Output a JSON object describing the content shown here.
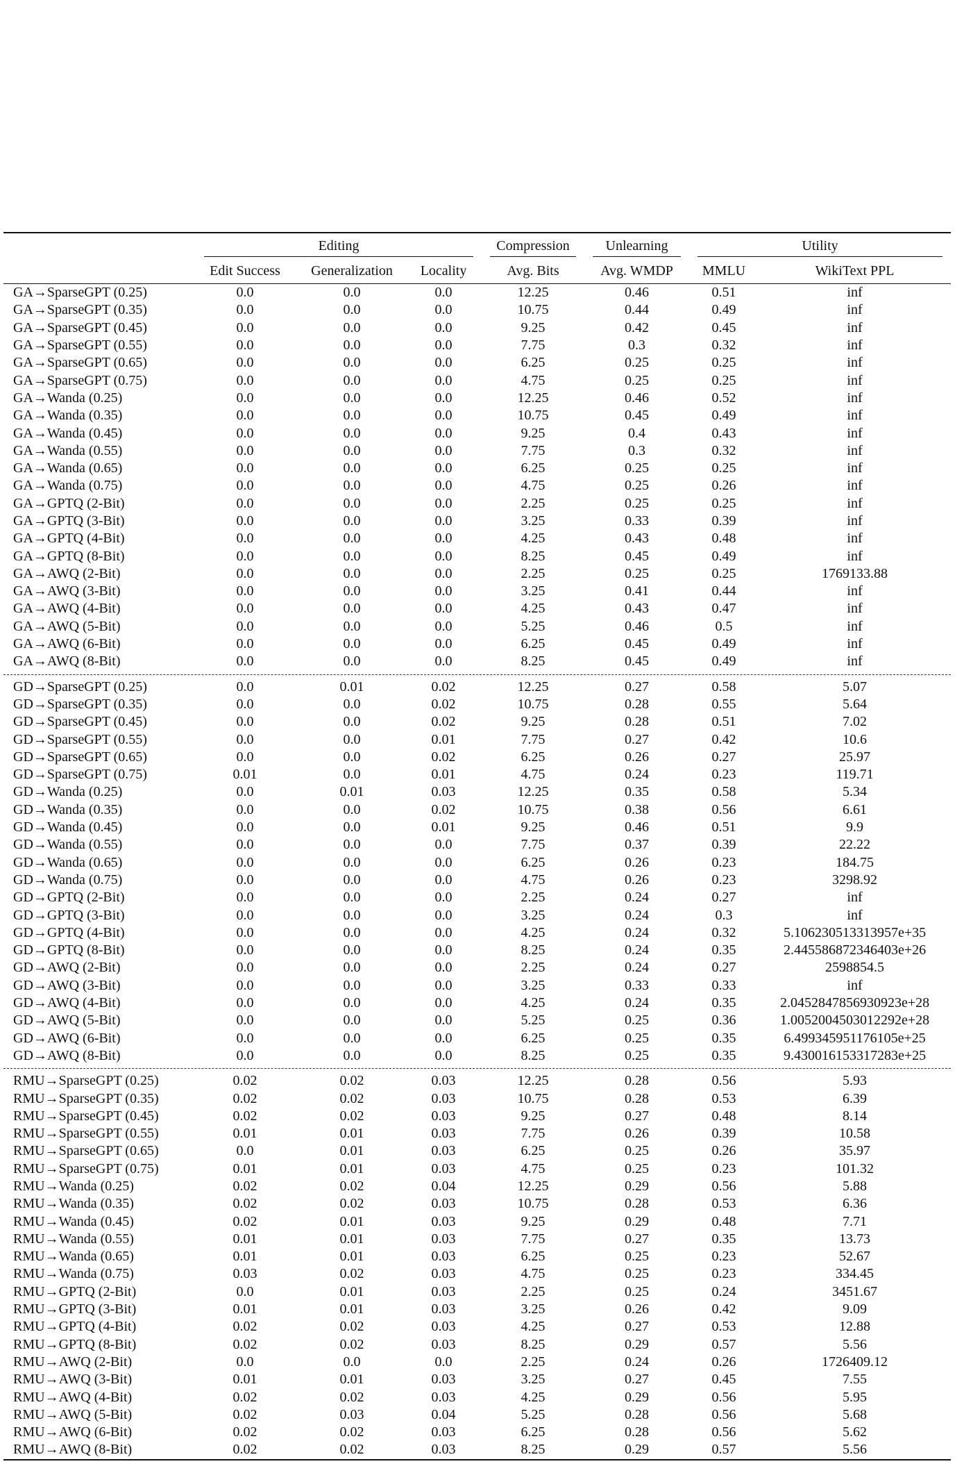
{
  "header": {
    "groups": [
      "Editing",
      "Compression",
      "Unlearning",
      "Utility"
    ],
    "columns": [
      "Edit Success",
      "Generalization",
      "Locality",
      "Avg. Bits",
      "Avg. WMDP",
      "MMLU",
      "WikiText PPL"
    ]
  },
  "sections": [
    {
      "rows": [
        [
          "GA→SparseGPT (0.25)",
          "0.0",
          "0.0",
          "0.0",
          "12.25",
          "0.46",
          "0.51",
          "inf"
        ],
        [
          "GA→SparseGPT (0.35)",
          "0.0",
          "0.0",
          "0.0",
          "10.75",
          "0.44",
          "0.49",
          "inf"
        ],
        [
          "GA→SparseGPT (0.45)",
          "0.0",
          "0.0",
          "0.0",
          "9.25",
          "0.42",
          "0.45",
          "inf"
        ],
        [
          "GA→SparseGPT (0.55)",
          "0.0",
          "0.0",
          "0.0",
          "7.75",
          "0.3",
          "0.32",
          "inf"
        ],
        [
          "GA→SparseGPT (0.65)",
          "0.0",
          "0.0",
          "0.0",
          "6.25",
          "0.25",
          "0.25",
          "inf"
        ],
        [
          "GA→SparseGPT (0.75)",
          "0.0",
          "0.0",
          "0.0",
          "4.75",
          "0.25",
          "0.25",
          "inf"
        ],
        [
          "GA→Wanda (0.25)",
          "0.0",
          "0.0",
          "0.0",
          "12.25",
          "0.46",
          "0.52",
          "inf"
        ],
        [
          "GA→Wanda (0.35)",
          "0.0",
          "0.0",
          "0.0",
          "10.75",
          "0.45",
          "0.49",
          "inf"
        ],
        [
          "GA→Wanda (0.45)",
          "0.0",
          "0.0",
          "0.0",
          "9.25",
          "0.4",
          "0.43",
          "inf"
        ],
        [
          "GA→Wanda (0.55)",
          "0.0",
          "0.0",
          "0.0",
          "7.75",
          "0.3",
          "0.32",
          "inf"
        ],
        [
          "GA→Wanda (0.65)",
          "0.0",
          "0.0",
          "0.0",
          "6.25",
          "0.25",
          "0.25",
          "inf"
        ],
        [
          "GA→Wanda (0.75)",
          "0.0",
          "0.0",
          "0.0",
          "4.75",
          "0.25",
          "0.26",
          "inf"
        ],
        [
          "GA→GPTQ (2-Bit)",
          "0.0",
          "0.0",
          "0.0",
          "2.25",
          "0.25",
          "0.25",
          "inf"
        ],
        [
          "GA→GPTQ (3-Bit)",
          "0.0",
          "0.0",
          "0.0",
          "3.25",
          "0.33",
          "0.39",
          "inf"
        ],
        [
          "GA→GPTQ (4-Bit)",
          "0.0",
          "0.0",
          "0.0",
          "4.25",
          "0.43",
          "0.48",
          "inf"
        ],
        [
          "GA→GPTQ (8-Bit)",
          "0.0",
          "0.0",
          "0.0",
          "8.25",
          "0.45",
          "0.49",
          "inf"
        ],
        [
          "GA→AWQ (2-Bit)",
          "0.0",
          "0.0",
          "0.0",
          "2.25",
          "0.25",
          "0.25",
          "1769133.88"
        ],
        [
          "GA→AWQ (3-Bit)",
          "0.0",
          "0.0",
          "0.0",
          "3.25",
          "0.41",
          "0.44",
          "inf"
        ],
        [
          "GA→AWQ (4-Bit)",
          "0.0",
          "0.0",
          "0.0",
          "4.25",
          "0.43",
          "0.47",
          "inf"
        ],
        [
          "GA→AWQ (5-Bit)",
          "0.0",
          "0.0",
          "0.0",
          "5.25",
          "0.46",
          "0.5",
          "inf"
        ],
        [
          "GA→AWQ (6-Bit)",
          "0.0",
          "0.0",
          "0.0",
          "6.25",
          "0.45",
          "0.49",
          "inf"
        ],
        [
          "GA→AWQ (8-Bit)",
          "0.0",
          "0.0",
          "0.0",
          "8.25",
          "0.45",
          "0.49",
          "inf"
        ]
      ]
    },
    {
      "rows": [
        [
          "GD→SparseGPT (0.25)",
          "0.0",
          "0.01",
          "0.02",
          "12.25",
          "0.27",
          "0.58",
          "5.07"
        ],
        [
          "GD→SparseGPT (0.35)",
          "0.0",
          "0.0",
          "0.02",
          "10.75",
          "0.28",
          "0.55",
          "5.64"
        ],
        [
          "GD→SparseGPT (0.45)",
          "0.0",
          "0.0",
          "0.02",
          "9.25",
          "0.28",
          "0.51",
          "7.02"
        ],
        [
          "GD→SparseGPT (0.55)",
          "0.0",
          "0.0",
          "0.01",
          "7.75",
          "0.27",
          "0.42",
          "10.6"
        ],
        [
          "GD→SparseGPT (0.65)",
          "0.0",
          "0.0",
          "0.02",
          "6.25",
          "0.26",
          "0.27",
          "25.97"
        ],
        [
          "GD→SparseGPT (0.75)",
          "0.01",
          "0.0",
          "0.01",
          "4.75",
          "0.24",
          "0.23",
          "119.71"
        ],
        [
          "GD→Wanda (0.25)",
          "0.0",
          "0.01",
          "0.03",
          "12.25",
          "0.35",
          "0.58",
          "5.34"
        ],
        [
          "GD→Wanda (0.35)",
          "0.0",
          "0.0",
          "0.02",
          "10.75",
          "0.38",
          "0.56",
          "6.61"
        ],
        [
          "GD→Wanda (0.45)",
          "0.0",
          "0.0",
          "0.01",
          "9.25",
          "0.46",
          "0.51",
          "9.9"
        ],
        [
          "GD→Wanda (0.55)",
          "0.0",
          "0.0",
          "0.0",
          "7.75",
          "0.37",
          "0.39",
          "22.22"
        ],
        [
          "GD→Wanda (0.65)",
          "0.0",
          "0.0",
          "0.0",
          "6.25",
          "0.26",
          "0.23",
          "184.75"
        ],
        [
          "GD→Wanda (0.75)",
          "0.0",
          "0.0",
          "0.0",
          "4.75",
          "0.26",
          "0.23",
          "3298.92"
        ],
        [
          "GD→GPTQ (2-Bit)",
          "0.0",
          "0.0",
          "0.0",
          "2.25",
          "0.24",
          "0.27",
          "inf"
        ],
        [
          "GD→GPTQ (3-Bit)",
          "0.0",
          "0.0",
          "0.0",
          "3.25",
          "0.24",
          "0.3",
          "inf"
        ],
        [
          "GD→GPTQ (4-Bit)",
          "0.0",
          "0.0",
          "0.0",
          "4.25",
          "0.24",
          "0.32",
          "5.106230513313957e+35"
        ],
        [
          "GD→GPTQ (8-Bit)",
          "0.0",
          "0.0",
          "0.0",
          "8.25",
          "0.24",
          "0.35",
          "2.445586872346403e+26"
        ],
        [
          "GD→AWQ (2-Bit)",
          "0.0",
          "0.0",
          "0.0",
          "2.25",
          "0.24",
          "0.27",
          "2598854.5"
        ],
        [
          "GD→AWQ (3-Bit)",
          "0.0",
          "0.0",
          "0.0",
          "3.25",
          "0.33",
          "0.33",
          "inf"
        ],
        [
          "GD→AWQ (4-Bit)",
          "0.0",
          "0.0",
          "0.0",
          "4.25",
          "0.24",
          "0.35",
          "2.0452847856930923e+28"
        ],
        [
          "GD→AWQ (5-Bit)",
          "0.0",
          "0.0",
          "0.0",
          "5.25",
          "0.25",
          "0.36",
          "1.0052004503012292e+28"
        ],
        [
          "GD→AWQ (6-Bit)",
          "0.0",
          "0.0",
          "0.0",
          "6.25",
          "0.25",
          "0.35",
          "6.499345951176105e+25"
        ],
        [
          "GD→AWQ (8-Bit)",
          "0.0",
          "0.0",
          "0.0",
          "8.25",
          "0.25",
          "0.35",
          "9.430016153317283e+25"
        ]
      ]
    },
    {
      "rows": [
        [
          "RMU→SparseGPT (0.25)",
          "0.02",
          "0.02",
          "0.03",
          "12.25",
          "0.28",
          "0.56",
          "5.93"
        ],
        [
          "RMU→SparseGPT (0.35)",
          "0.02",
          "0.02",
          "0.03",
          "10.75",
          "0.28",
          "0.53",
          "6.39"
        ],
        [
          "RMU→SparseGPT (0.45)",
          "0.02",
          "0.02",
          "0.03",
          "9.25",
          "0.27",
          "0.48",
          "8.14"
        ],
        [
          "RMU→SparseGPT (0.55)",
          "0.01",
          "0.01",
          "0.03",
          "7.75",
          "0.26",
          "0.39",
          "10.58"
        ],
        [
          "RMU→SparseGPT (0.65)",
          "0.0",
          "0.01",
          "0.03",
          "6.25",
          "0.25",
          "0.26",
          "35.97"
        ],
        [
          "RMU→SparseGPT (0.75)",
          "0.01",
          "0.01",
          "0.03",
          "4.75",
          "0.25",
          "0.23",
          "101.32"
        ],
        [
          "RMU→Wanda (0.25)",
          "0.02",
          "0.02",
          "0.04",
          "12.25",
          "0.29",
          "0.56",
          "5.88"
        ],
        [
          "RMU→Wanda (0.35)",
          "0.02",
          "0.02",
          "0.03",
          "10.75",
          "0.28",
          "0.53",
          "6.36"
        ],
        [
          "RMU→Wanda (0.45)",
          "0.02",
          "0.01",
          "0.03",
          "9.25",
          "0.29",
          "0.48",
          "7.71"
        ],
        [
          "RMU→Wanda (0.55)",
          "0.01",
          "0.01",
          "0.03",
          "7.75",
          "0.27",
          "0.35",
          "13.73"
        ],
        [
          "RMU→Wanda (0.65)",
          "0.01",
          "0.01",
          "0.03",
          "6.25",
          "0.25",
          "0.23",
          "52.67"
        ],
        [
          "RMU→Wanda (0.75)",
          "0.03",
          "0.02",
          "0.03",
          "4.75",
          "0.25",
          "0.23",
          "334.45"
        ],
        [
          "RMU→GPTQ (2-Bit)",
          "0.0",
          "0.01",
          "0.03",
          "2.25",
          "0.25",
          "0.24",
          "3451.67"
        ],
        [
          "RMU→GPTQ (3-Bit)",
          "0.01",
          "0.01",
          "0.03",
          "3.25",
          "0.26",
          "0.42",
          "9.09"
        ],
        [
          "RMU→GPTQ (4-Bit)",
          "0.02",
          "0.02",
          "0.03",
          "4.25",
          "0.27",
          "0.53",
          "12.88"
        ],
        [
          "RMU→GPTQ (8-Bit)",
          "0.02",
          "0.02",
          "0.03",
          "8.25",
          "0.29",
          "0.57",
          "5.56"
        ],
        [
          "RMU→AWQ (2-Bit)",
          "0.0",
          "0.0",
          "0.0",
          "2.25",
          "0.24",
          "0.26",
          "1726409.12"
        ],
        [
          "RMU→AWQ (3-Bit)",
          "0.01",
          "0.01",
          "0.03",
          "3.25",
          "0.27",
          "0.45",
          "7.55"
        ],
        [
          "RMU→AWQ (4-Bit)",
          "0.02",
          "0.02",
          "0.03",
          "4.25",
          "0.29",
          "0.56",
          "5.95"
        ],
        [
          "RMU→AWQ (5-Bit)",
          "0.02",
          "0.03",
          "0.04",
          "5.25",
          "0.28",
          "0.56",
          "5.68"
        ],
        [
          "RMU→AWQ (6-Bit)",
          "0.02",
          "0.02",
          "0.03",
          "6.25",
          "0.28",
          "0.56",
          "5.62"
        ],
        [
          "RMU→AWQ (8-Bit)",
          "0.02",
          "0.02",
          "0.03",
          "8.25",
          "0.29",
          "0.57",
          "5.56"
        ]
      ]
    }
  ]
}
